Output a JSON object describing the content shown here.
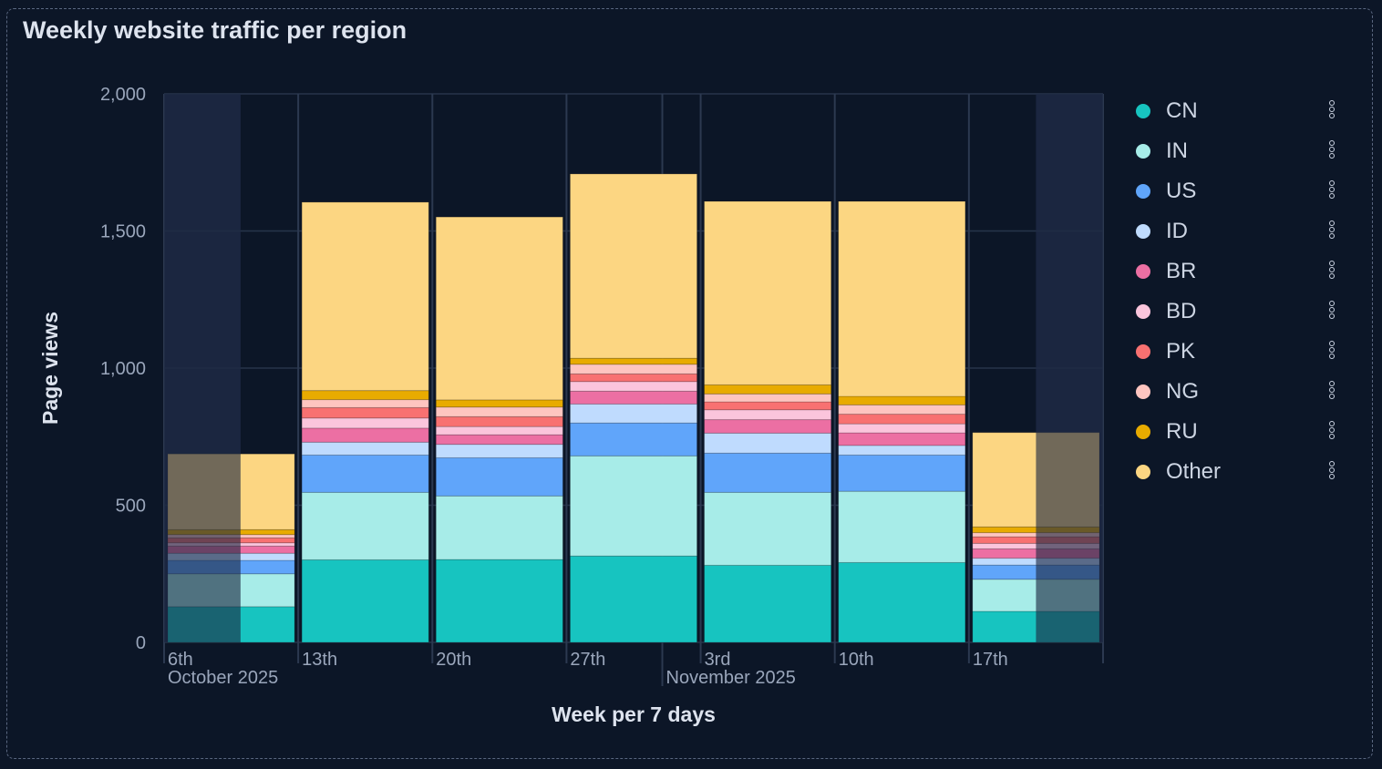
{
  "chart_data": {
    "type": "bar",
    "stacked": true,
    "title": "Weekly website traffic per region",
    "xlabel": "Week per 7 days",
    "ylabel": "Page views",
    "ylim": [
      0,
      2000
    ],
    "yticks": [
      "0",
      "500",
      "1,000",
      "1,500",
      "2,000"
    ],
    "ytick_values": [
      0,
      500,
      1000,
      1500,
      2000
    ],
    "categories": [
      "6th",
      "13th",
      "20th",
      "27th",
      "3rd",
      "10th",
      "17th"
    ],
    "month_labels": [
      {
        "label": "October 2025",
        "under": "6th"
      },
      {
        "label": "November 2025",
        "under": "1st"
      }
    ],
    "partial_periods": [
      "6th",
      "17th"
    ],
    "grid": true,
    "legend_position": "right",
    "series": [
      {
        "name": "CN",
        "color": "#17c4c0",
        "values": [
          130,
          301,
          302,
          315,
          281,
          291,
          113
        ]
      },
      {
        "name": "IN",
        "color": "#a7ece8",
        "values": [
          120,
          246,
          232,
          365,
          266,
          260,
          117
        ]
      },
      {
        "name": "US",
        "color": "#60a5fa",
        "values": [
          49,
          136,
          139,
          120,
          143,
          132,
          52
        ]
      },
      {
        "name": "ID",
        "color": "#bfdbfe",
        "values": [
          26,
          47,
          49,
          69,
          73,
          35,
          25
        ]
      },
      {
        "name": "BR",
        "color": "#ec6fa3",
        "values": [
          26,
          51,
          35,
          47,
          49,
          46,
          34
        ]
      },
      {
        "name": "BD",
        "color": "#fbc5dc",
        "values": [
          12,
          37,
          30,
          35,
          36,
          33,
          20
        ]
      },
      {
        "name": "PK",
        "color": "#f87171",
        "values": [
          18,
          38,
          36,
          28,
          29,
          35,
          24
        ]
      },
      {
        "name": "NG",
        "color": "#fec5c0",
        "values": [
          12,
          29,
          35,
          35,
          29,
          34,
          15
        ]
      },
      {
        "name": "RU",
        "color": "#e8ab00",
        "values": [
          18,
          33,
          26,
          22,
          33,
          31,
          21
        ]
      },
      {
        "name": "Other",
        "color": "#fcd682",
        "values": [
          276,
          687,
          667,
          672,
          669,
          711,
          344
        ]
      }
    ]
  },
  "legend": {
    "menu_icon": "kebab-vertical-icon"
  }
}
